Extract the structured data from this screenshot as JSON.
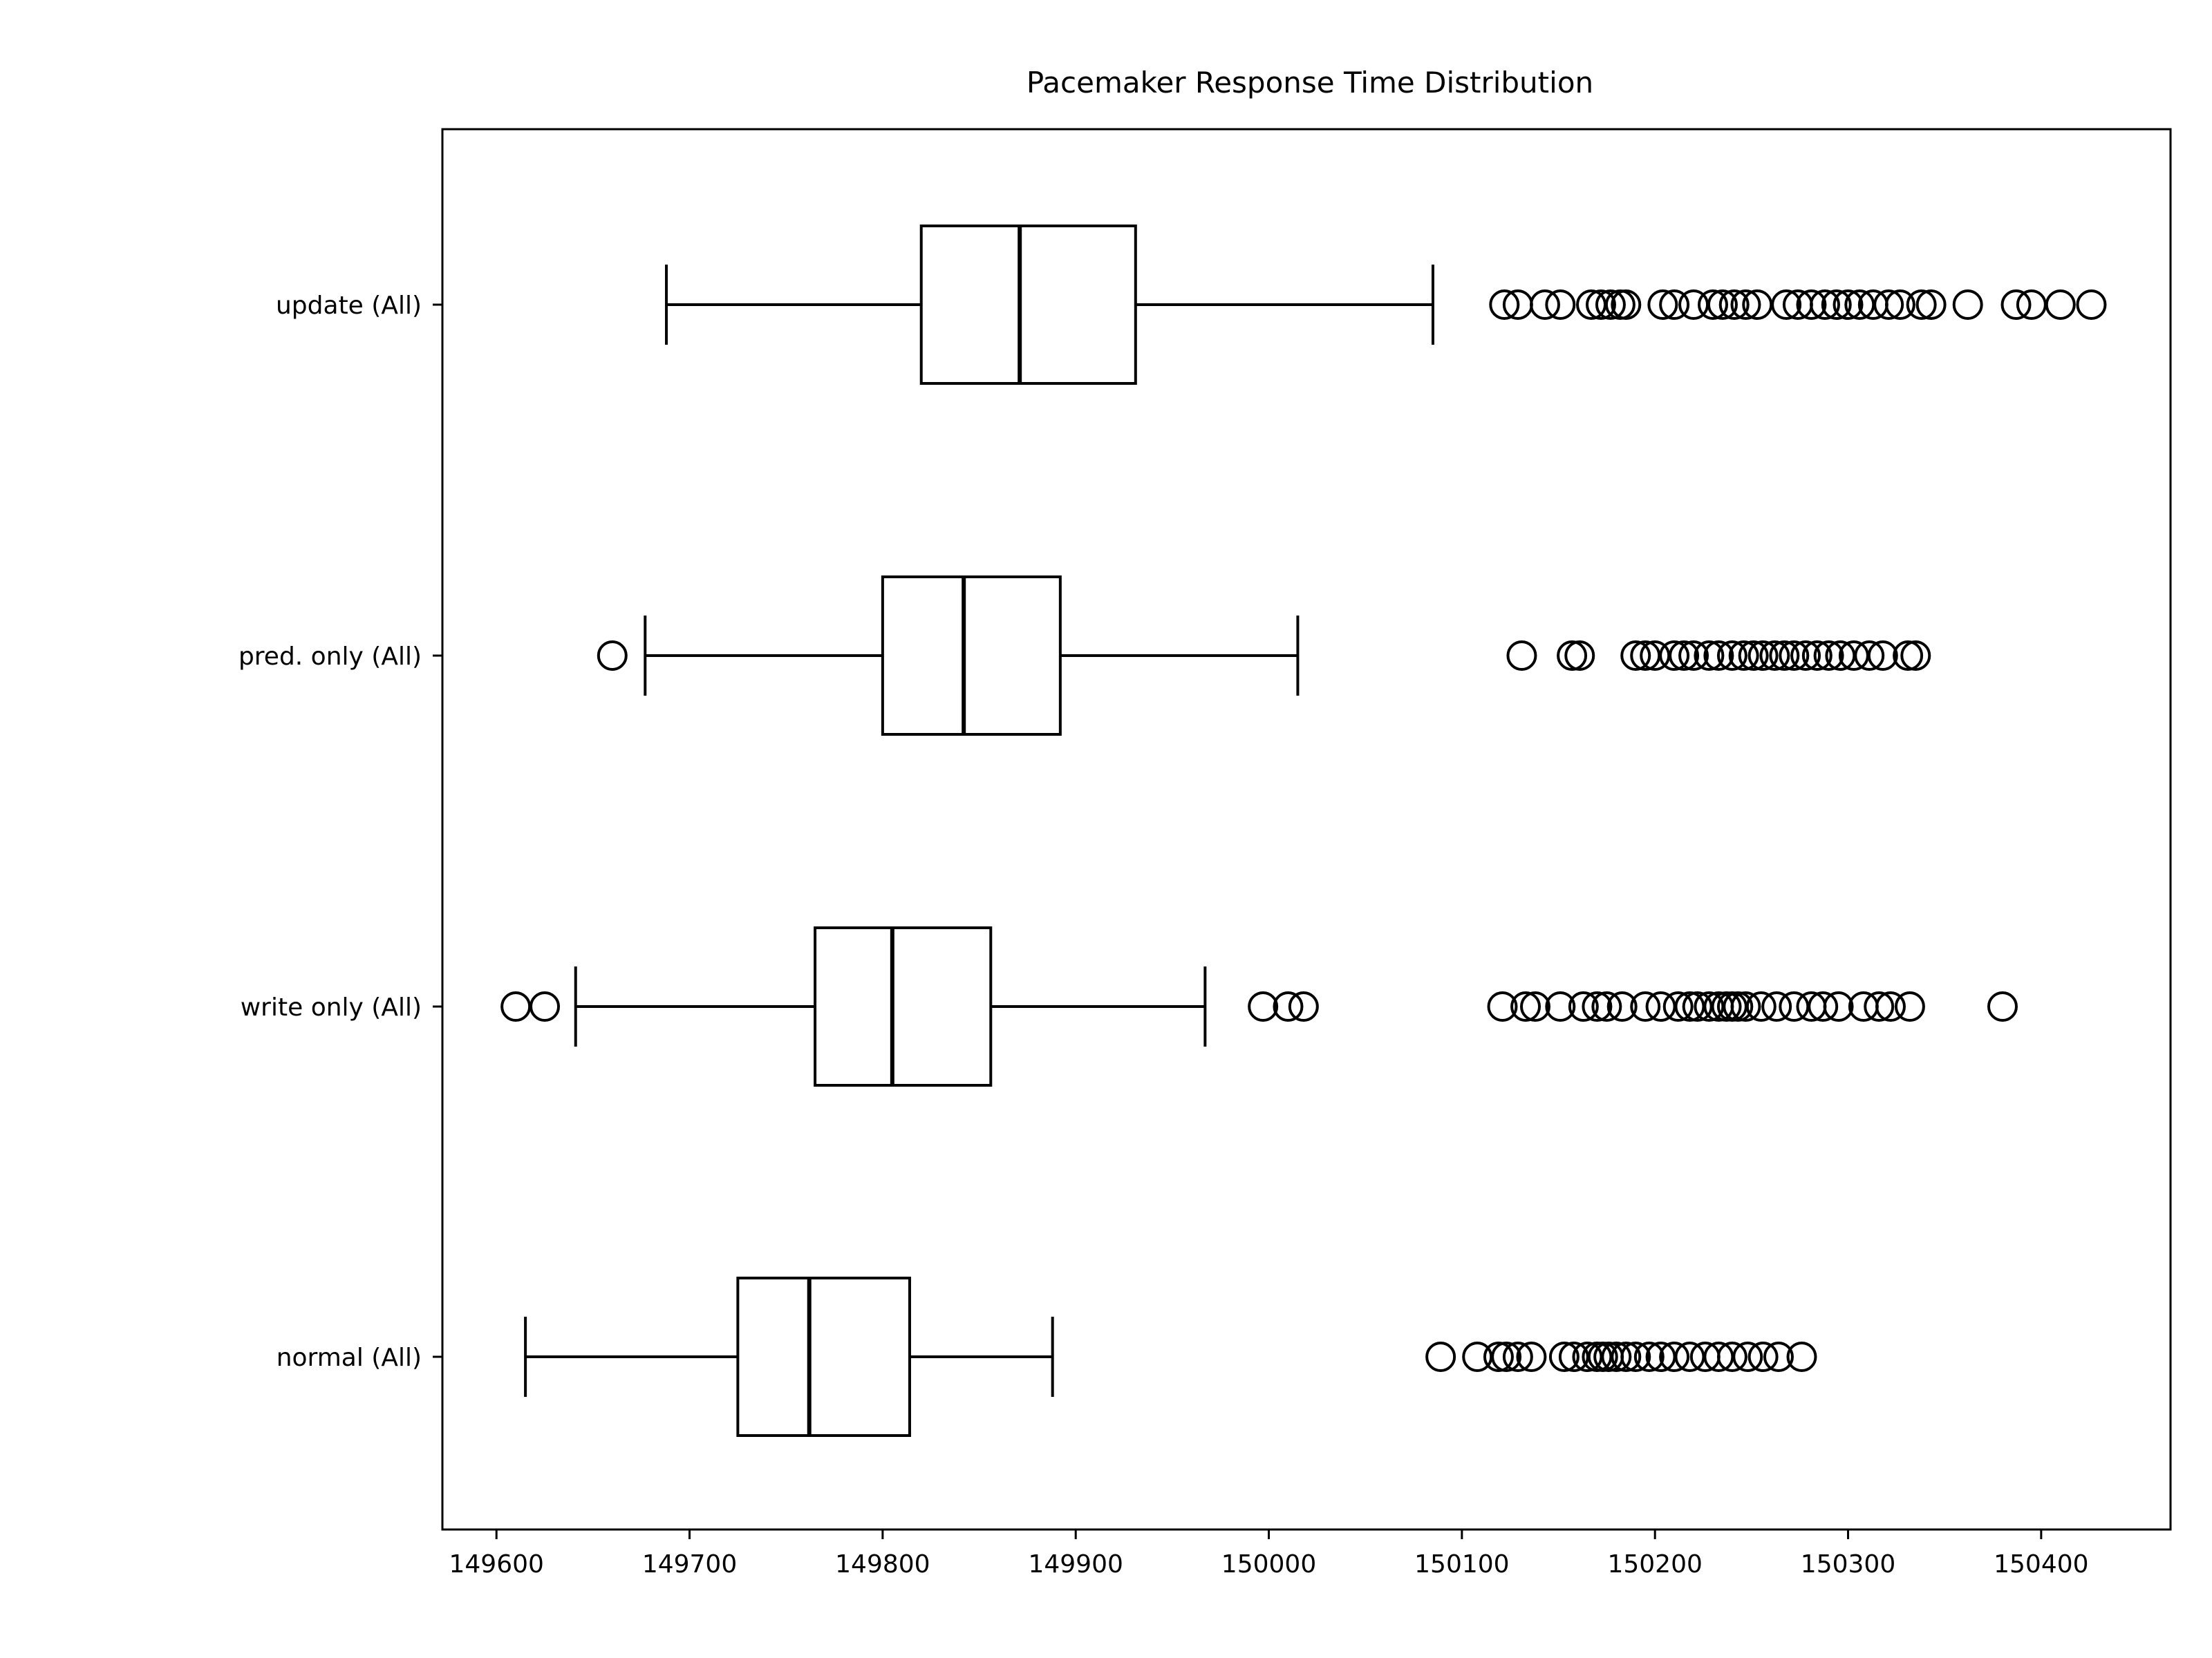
{
  "chart_data": {
    "type": "box",
    "orientation": "horizontal",
    "title": "Pacemaker Response Time Distribution",
    "xlabel": "",
    "ylabel": "",
    "xlim": [
      149572,
      150467
    ],
    "xticks": [
      149600,
      149700,
      149800,
      149900,
      150000,
      150100,
      150200,
      150300,
      150400
    ],
    "xtick_labels": [
      "149600",
      "149700",
      "149800",
      "149900",
      "150000",
      "150100",
      "150200",
      "150300",
      "150400"
    ],
    "grid": false,
    "categories": [
      "normal (All)",
      "write only (All)",
      "pred. only (All)",
      "update (All)"
    ],
    "boxes": [
      {
        "label": "normal (All)",
        "whisker_low": 149615,
        "q1": 149725,
        "median": 149762,
        "q3": 149814,
        "whisker_high": 149888,
        "outliers": [
          150089,
          150108,
          150119,
          150123,
          150129,
          150136,
          150153,
          150158,
          150165,
          150170,
          150173,
          150176,
          150180,
          150185,
          150190,
          150197,
          150203,
          150210,
          150218,
          150226,
          150233,
          150240,
          150248,
          150256,
          150264,
          150276
        ]
      },
      {
        "label": "write only (All)",
        "whisker_low": 149641,
        "q1": 149765,
        "median": 149805,
        "q3": 149856,
        "whisker_high": 149967,
        "outliers": [
          149610,
          149625,
          149997,
          150010,
          150018,
          150121,
          150133,
          150138,
          150151,
          150163,
          150170,
          150175,
          150183,
          150195,
          150203,
          150212,
          150218,
          150222,
          150228,
          150233,
          150237,
          150240,
          150243,
          150247,
          150255,
          150263,
          150272,
          150281,
          150287,
          150295,
          150308,
          150316,
          150322,
          150332,
          150380
        ]
      },
      {
        "label": "pred. only (All)",
        "whisker_low": 149677,
        "q1": 149800,
        "median": 149842,
        "q3": 149892,
        "whisker_high": 150015,
        "outliers": [
          149660,
          150131,
          150157,
          150161,
          150190,
          150195,
          150200,
          150210,
          150215,
          150220,
          150228,
          150233,
          150240,
          150246,
          150251,
          150256,
          150262,
          150267,
          150272,
          150278,
          150284,
          150290,
          150296,
          150303,
          150311,
          150318,
          150331,
          150335
        ]
      },
      {
        "label": "update (All)",
        "whisker_low": 149688,
        "q1": 149820,
        "median": 149871,
        "q3": 149931,
        "whisker_high": 150085,
        "outliers": [
          150122,
          150129,
          150143,
          150151,
          150167,
          150172,
          150177,
          150182,
          150185,
          150204,
          150210,
          150220,
          150230,
          150235,
          150241,
          150247,
          150253,
          150268,
          150274,
          150281,
          150288,
          150294,
          150300,
          150306,
          150313,
          150321,
          150327,
          150338,
          150343,
          150362,
          150387,
          150395,
          150410,
          150426
        ]
      }
    ]
  }
}
